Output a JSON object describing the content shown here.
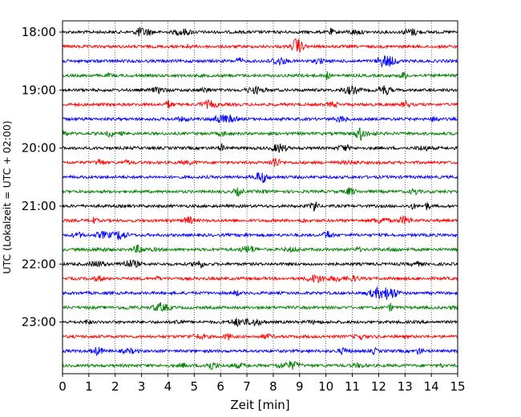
{
  "chart_data": {
    "type": "line",
    "title": "",
    "xlabel": "Zeit  [min]",
    "ylabel": "UTC (Lokalzeit = UTC + 02:00)",
    "xlim": [
      0,
      15
    ],
    "x_ticks": [
      0,
      1,
      2,
      3,
      4,
      5,
      6,
      7,
      8,
      9,
      10,
      11,
      12,
      13,
      14,
      15
    ],
    "x_tick_labels": [
      "0",
      "1",
      "2",
      "3",
      "4",
      "5",
      "6",
      "7",
      "8",
      "9",
      "10",
      "11",
      "12",
      "13",
      "14",
      "15"
    ],
    "y_tick_labels": [
      "18:00",
      "19:00",
      "20:00",
      "21:00",
      "22:00",
      "23:00"
    ],
    "minutes_per_row": 15,
    "grid": "vertical dotted",
    "colors": [
      "#000000",
      "#ff0000",
      "#0000ff",
      "#008000"
    ],
    "series": [
      {
        "start": "18:00",
        "color": "#000000"
      },
      {
        "start": "18:15",
        "color": "#ff0000"
      },
      {
        "start": "18:30",
        "color": "#0000ff"
      },
      {
        "start": "18:45",
        "color": "#008000"
      },
      {
        "start": "19:00",
        "color": "#000000"
      },
      {
        "start": "19:15",
        "color": "#ff0000"
      },
      {
        "start": "19:30",
        "color": "#0000ff"
      },
      {
        "start": "19:45",
        "color": "#008000"
      },
      {
        "start": "20:00",
        "color": "#000000"
      },
      {
        "start": "20:15",
        "color": "#ff0000"
      },
      {
        "start": "20:30",
        "color": "#0000ff"
      },
      {
        "start": "20:45",
        "color": "#008000"
      },
      {
        "start": "21:00",
        "color": "#000000"
      },
      {
        "start": "21:15",
        "color": "#ff0000"
      },
      {
        "start": "21:30",
        "color": "#0000ff"
      },
      {
        "start": "21:45",
        "color": "#008000"
      },
      {
        "start": "22:00",
        "color": "#000000"
      },
      {
        "start": "22:15",
        "color": "#ff0000"
      },
      {
        "start": "22:30",
        "color": "#0000ff"
      },
      {
        "start": "22:45",
        "color": "#008000"
      },
      {
        "start": "23:00",
        "color": "#000000"
      },
      {
        "start": "23:15",
        "color": "#ff0000"
      },
      {
        "start": "23:30",
        "color": "#0000ff"
      },
      {
        "start": "23:45",
        "color": "#008000"
      }
    ]
  }
}
